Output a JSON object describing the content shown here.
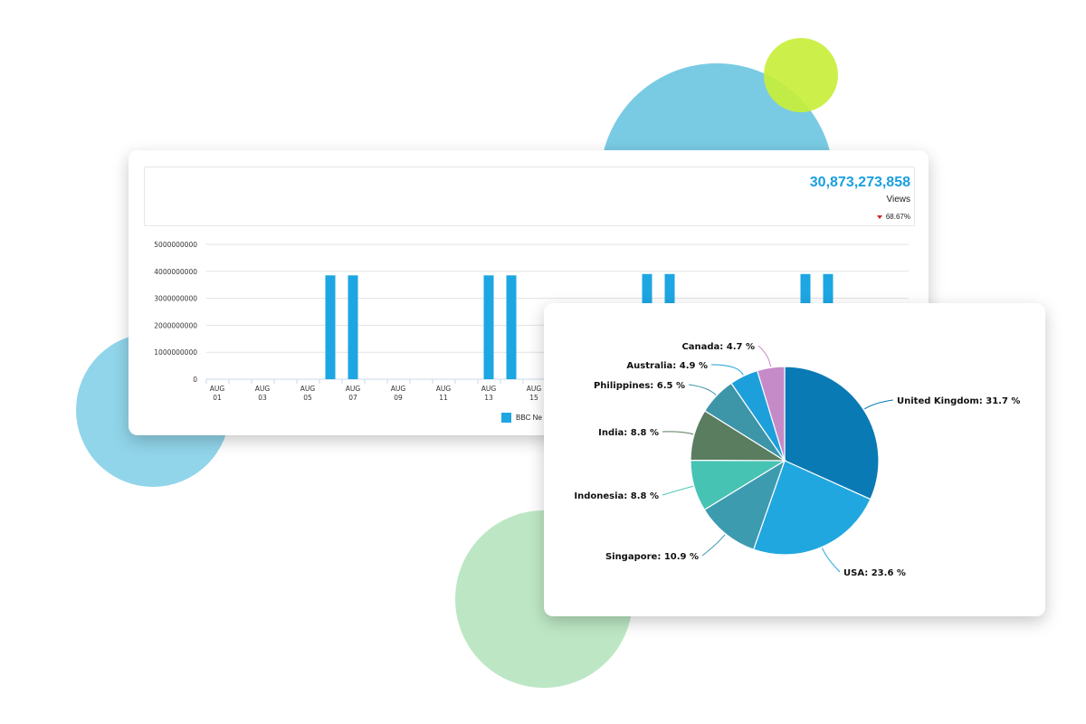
{
  "bar_card": {
    "kpi_value": "30,873,273,858",
    "kpi_label": "Views",
    "kpi_change": "68.67%",
    "legend_label": "BBC Ne"
  },
  "pie_card": {},
  "colors": {
    "bar": "#1ea6e3",
    "kpi": "#1a9fe0",
    "decrease": "#d62020"
  },
  "chart_data": [
    {
      "type": "bar",
      "title": "",
      "xlabel": "",
      "ylabel": "",
      "ylim": [
        0,
        5000000000
      ],
      "yticks": [
        "5000000000",
        "4000000000",
        "3000000000",
        "2000000000",
        "1000000000",
        "0"
      ],
      "xtick_labels": [
        [
          "AUG",
          "01"
        ],
        [
          "AUG",
          "03"
        ],
        [
          "AUG",
          "05"
        ],
        [
          "AUG",
          "07"
        ],
        [
          "AUG",
          "09"
        ],
        [
          "AUG",
          "11"
        ],
        [
          "AUG",
          "13"
        ],
        [
          "AUG",
          "15"
        ]
      ],
      "series": [
        {
          "name": "BBC Ne",
          "color": "#1ea6e3",
          "points": [
            {
              "x": "AUG 06",
              "value": 3850000000
            },
            {
              "x": "AUG 07",
              "value": 3850000000
            },
            {
              "x": "AUG 13",
              "value": 3850000000
            },
            {
              "x": "AUG 14",
              "value": 3850000000
            },
            {
              "x": "AUG 20",
              "value": 3900000000
            },
            {
              "x": "AUG 21",
              "value": 3900000000
            },
            {
              "x": "AUG 27",
              "value": 3900000000
            },
            {
              "x": "AUG 28",
              "value": 3900000000
            }
          ]
        }
      ],
      "grid": true,
      "legend": "bottom"
    },
    {
      "type": "pie",
      "title": "",
      "slices": [
        {
          "label": "United Kingdom: 31.7 %",
          "value": 31.7,
          "color": "#0a7ab5"
        },
        {
          "label": "USA: 23.6 %",
          "value": 23.6,
          "color": "#20a7e0"
        },
        {
          "label": "Singapore: 10.9 %",
          "value": 10.9,
          "color": "#3d9bb0"
        },
        {
          "label": "Indonesia: 8.8 %",
          "value": 8.8,
          "color": "#47c3b4"
        },
        {
          "label": "India: 8.8 %",
          "value": 8.8,
          "color": "#5a7c5f"
        },
        {
          "label": "Philippines: 6.5 %",
          "value": 6.5,
          "color": "#3d95a8"
        },
        {
          "label": "Australia: 4.9 %",
          "value": 4.9,
          "color": "#1d9fdc"
        },
        {
          "label": "Canada: 4.7 %",
          "value": 4.7,
          "color": "#c58ac8"
        }
      ]
    }
  ]
}
